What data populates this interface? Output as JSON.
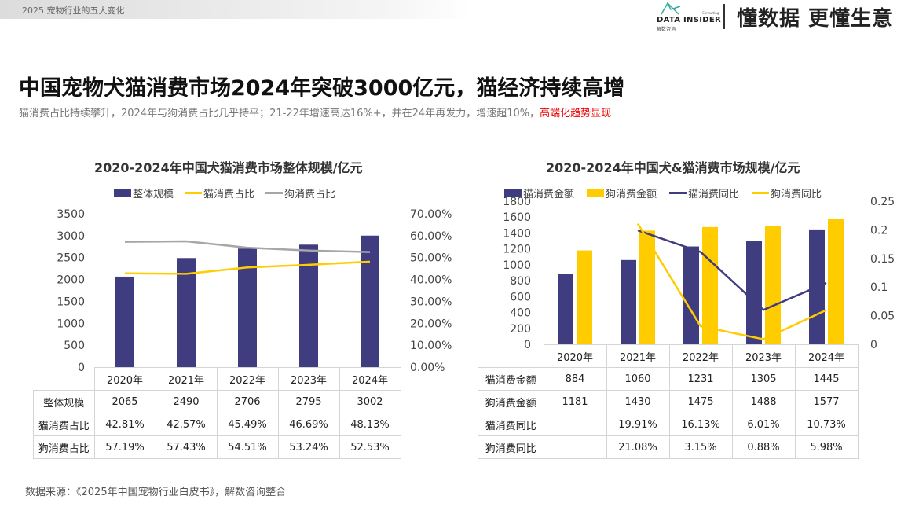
{
  "header": {
    "section": "2025  宠物行业的五大变化",
    "logo_text": "DATA INSIDER",
    "logo_sub": "解数咨询",
    "logo_consulting": "Consulting",
    "slogan": "懂数据 更懂生意"
  },
  "title": "中国宠物犬猫消费市场2024年突破3000亿元，猫经济持续高增",
  "subtitle": "猫消费占比持续攀升，2024年与狗消费占比几乎持平；21-22年增速高达16%+，并在24年再发力，增速超10%，",
  "subtitle_highlight": "高端化趋势显现",
  "source": "数据来源：《2025年中国宠物行业白皮书》，解数咨询整合",
  "colors": {
    "navy": "#3f3d7f",
    "yellow": "#ffcc00",
    "gray": "#a6a6a6",
    "highlight": "#e00000"
  },
  "chart_data": [
    {
      "type": "bar+line",
      "title": "2020-2024年中国犬猫消费市场整体规模/亿元",
      "categories": [
        "2020年",
        "2021年",
        "2022年",
        "2023年",
        "2024年"
      ],
      "ylim": [
        0,
        3500
      ],
      "y_ticks": [
        "0",
        "500",
        "1000",
        "1500",
        "2000",
        "2500",
        "3000",
        "3500"
      ],
      "y2lim": [
        0,
        0.7
      ],
      "y2_ticks": [
        "0.00%",
        "10.00%",
        "20.00%",
        "30.00%",
        "40.00%",
        "50.00%",
        "60.00%",
        "70.00%"
      ],
      "legend_position": "top",
      "series": [
        {
          "name": "整体规模",
          "kind": "bar",
          "axis": "left",
          "color": "#3f3d7f",
          "values": [
            2065,
            2490,
            2706,
            2795,
            3002
          ],
          "labels": [
            "2065",
            "2490",
            "2706",
            "2795",
            "3002"
          ]
        },
        {
          "name": "猫消费占比",
          "kind": "line",
          "axis": "right",
          "color": "#ffcc00",
          "values": [
            0.4281,
            0.4257,
            0.4549,
            0.4669,
            0.4813
          ],
          "labels": [
            "42.81%",
            "42.57%",
            "45.49%",
            "46.69%",
            "48.13%"
          ]
        },
        {
          "name": "狗消费占比",
          "kind": "line",
          "axis": "right",
          "color": "#a6a6a6",
          "values": [
            0.5719,
            0.5743,
            0.5451,
            0.5324,
            0.5253
          ],
          "labels": [
            "57.19%",
            "57.43%",
            "54.51%",
            "53.24%",
            "52.53%"
          ]
        }
      ]
    },
    {
      "type": "bar+line",
      "title": "2020-2024年中国犬&猫消费市场规模/亿元",
      "categories": [
        "2020年",
        "2021年",
        "2022年",
        "2023年",
        "2024年"
      ],
      "ylim": [
        0,
        1800
      ],
      "y_ticks": [
        "0",
        "200",
        "400",
        "600",
        "800",
        "1000",
        "1200",
        "1400",
        "1600",
        "1800"
      ],
      "y2lim": [
        0,
        0.25
      ],
      "y2_ticks": [
        "0",
        "0.05",
        "0.1",
        "0.15",
        "0.2",
        "0.25"
      ],
      "legend_position": "top",
      "series": [
        {
          "name": "猫消费金额",
          "kind": "bar",
          "axis": "left",
          "color": "#3f3d7f",
          "values": [
            884,
            1060,
            1231,
            1305,
            1445
          ],
          "labels": [
            "884",
            "1060",
            "1231",
            "1305",
            "1445"
          ]
        },
        {
          "name": "狗消费金额",
          "kind": "bar",
          "axis": "left",
          "color": "#ffcc00",
          "values": [
            1181,
            1430,
            1475,
            1488,
            1577
          ],
          "labels": [
            "1181",
            "1430",
            "1475",
            "1488",
            "1577"
          ]
        },
        {
          "name": "猫消费同比",
          "kind": "line",
          "axis": "right",
          "color": "#3f3d7f",
          "values": [
            null,
            0.1991,
            0.1613,
            0.0601,
            0.1073
          ],
          "labels": [
            "",
            "19.91%",
            "16.13%",
            "6.01%",
            "10.73%"
          ]
        },
        {
          "name": "狗消费同比",
          "kind": "line",
          "axis": "right",
          "color": "#ffcc00",
          "values": [
            null,
            0.2108,
            0.0315,
            0.0088,
            0.0598
          ],
          "labels": [
            "",
            "21.08%",
            "3.15%",
            "0.88%",
            "5.98%"
          ]
        }
      ]
    }
  ]
}
